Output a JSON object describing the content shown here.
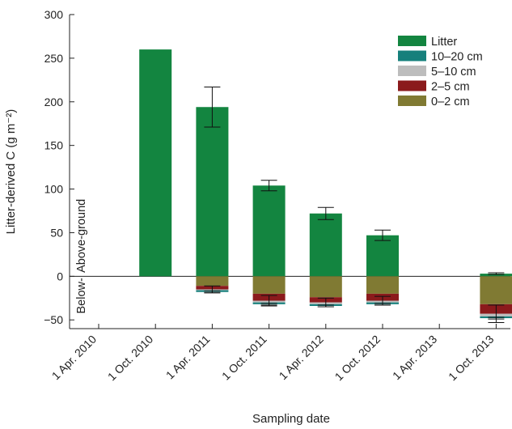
{
  "chart_data": {
    "type": "bar",
    "stacked": true,
    "ylabel": "Litter-derived C (g m⁻²)",
    "xlabel": "Sampling date",
    "ylim": [
      -60,
      300
    ],
    "yticks": [
      -50,
      0,
      50,
      100,
      150,
      200,
      250,
      300
    ],
    "x_ticks": [
      "1 Apr. 2010",
      "1 Oct. 2010",
      "1 Apr. 2011",
      "1 Oct. 2011",
      "1 Apr. 2012",
      "1 Oct. 2012",
      "1 Apr. 2013",
      "1 Oct. 2013"
    ],
    "region_labels": {
      "above": "Above-ground",
      "below": "Below-"
    },
    "legend_position": "top-right",
    "bars": [
      {
        "date": "1 Oct. 2010",
        "litter": 260,
        "litter_err": null,
        "layers": {
          "0-2": 0,
          "2-5": 0,
          "5-10": 0,
          "10-20": 0
        },
        "below_err": null
      },
      {
        "date": "1 Apr. 2011",
        "litter": 194,
        "litter_err": 23,
        "layers": {
          "0-2": 11,
          "2-5": 4,
          "5-10": 1,
          "10-20": 2
        },
        "below_err": 4
      },
      {
        "date": "1 Oct. 2011",
        "litter": 104,
        "litter_err": 6,
        "layers": {
          "0-2": 20,
          "2-5": 8,
          "5-10": 2,
          "10-20": 2
        },
        "below_err": 6
      },
      {
        "date": "1 Apr. 2012",
        "litter": 72,
        "litter_err": 7,
        "layers": {
          "0-2": 24,
          "2-5": 6,
          "5-10": 2,
          "10-20": 2
        },
        "below_err": 5
      },
      {
        "date": "1 Oct. 2012",
        "litter": 47,
        "litter_err": 6,
        "layers": {
          "0-2": 20,
          "2-5": 8,
          "5-10": 2,
          "10-20": 2
        },
        "below_err": 5
      },
      {
        "date": "1 Oct. 2013",
        "litter": 3,
        "litter_err": 1,
        "layers": {
          "0-2": 32,
          "2-5": 11,
          "5-10": 3,
          "10-20": 2
        },
        "below_err": 10
      }
    ],
    "legend": [
      {
        "key": "litter",
        "label": "Litter",
        "color": "#138540"
      },
      {
        "key": "10-20",
        "label": "10–20 cm",
        "color": "#16807c"
      },
      {
        "key": "5-10",
        "label": "5–10 cm",
        "color": "#bdbdbd"
      },
      {
        "key": "2-5",
        "label": "2–5 cm",
        "color": "#8b1a1c"
      },
      {
        "key": "0-2",
        "label": "0–2 cm",
        "color": "#807a33"
      }
    ]
  }
}
